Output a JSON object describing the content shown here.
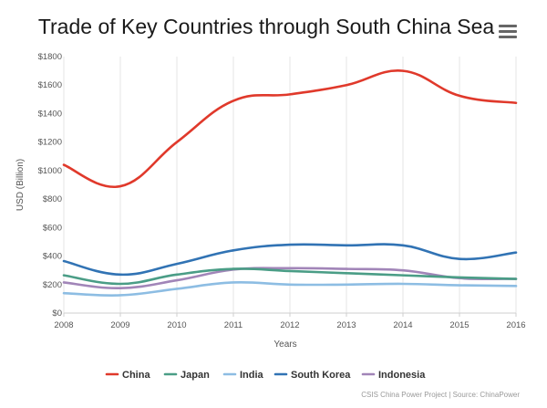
{
  "header": {
    "menu_icon": "hamburger-menu-icon"
  },
  "credits": "CSIS China Power Project | Source: ChinaPower",
  "chart_data": {
    "type": "line",
    "title": "Trade of Key Countries through South China Sea",
    "xlabel": "Years",
    "ylabel": "USD (Billion)",
    "ylim": [
      0,
      1800
    ],
    "yticks": [
      0,
      200,
      400,
      600,
      800,
      1000,
      1200,
      1400,
      1600,
      1800
    ],
    "ytick_labels": [
      "$0",
      "$200",
      "$400",
      "$600",
      "$800",
      "$1000",
      "$1200",
      "$1400",
      "$1600",
      "$1800"
    ],
    "x": [
      "2008",
      "2009",
      "2010",
      "2011",
      "2012",
      "2013",
      "2014",
      "2015",
      "2016"
    ],
    "grid": "vertical",
    "legend_position": "bottom",
    "series": [
      {
        "name": "China",
        "color": "#e0392b",
        "values": [
          1040,
          890,
          1200,
          1490,
          1535,
          1600,
          1700,
          1525,
          1475
        ]
      },
      {
        "name": "Japan",
        "color": "#4a9d86",
        "values": [
          265,
          205,
          270,
          310,
          295,
          280,
          265,
          250,
          240
        ]
      },
      {
        "name": "India",
        "color": "#8dbde3",
        "values": [
          140,
          125,
          170,
          215,
          200,
          200,
          205,
          195,
          190
        ]
      },
      {
        "name": "South Korea",
        "color": "#3173b4",
        "values": [
          365,
          270,
          345,
          440,
          480,
          475,
          475,
          380,
          425
        ]
      },
      {
        "name": "Indonesia",
        "color": "#a185b8",
        "values": [
          215,
          175,
          230,
          305,
          315,
          310,
          300,
          245,
          240
        ]
      }
    ]
  }
}
